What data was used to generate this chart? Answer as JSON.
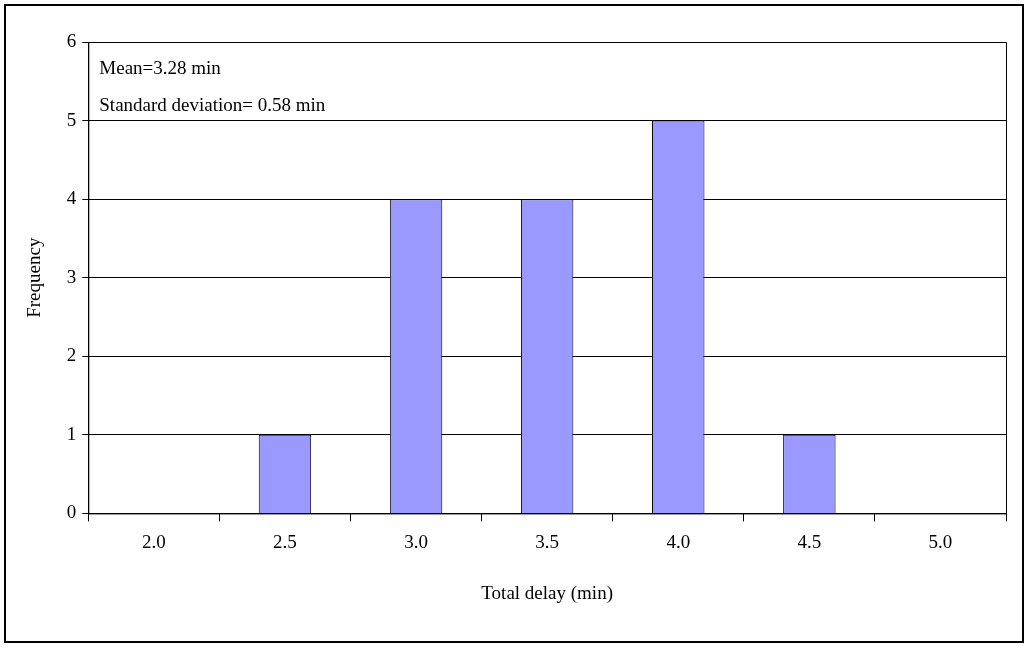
{
  "chart_data": {
    "type": "bar",
    "xlabel": "Total delay (min)",
    "ylabel": "Frequency",
    "categories": [
      "2.0",
      "2.5",
      "3.0",
      "3.5",
      "4.0",
      "4.5",
      "5.0"
    ],
    "values": [
      0,
      1,
      4,
      4,
      5,
      1,
      0
    ],
    "color": "#9999ff",
    "ylim": [
      0,
      6
    ],
    "yticks": [
      0,
      1,
      2,
      3,
      4,
      5,
      6
    ],
    "grid": "y",
    "annotations": [
      "Mean=3.28 min",
      "Standard deviation= 0.58 min"
    ]
  }
}
